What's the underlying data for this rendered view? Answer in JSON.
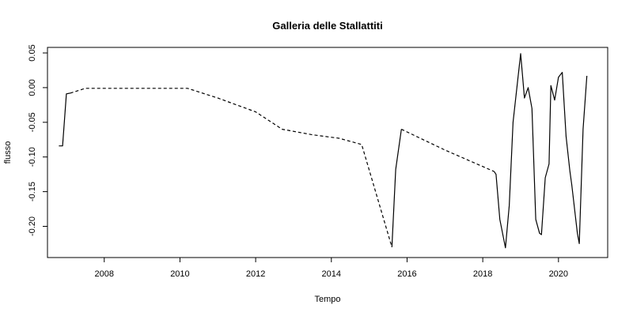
{
  "chart_data": {
    "type": "line",
    "title": "Galleria delle Stallattiti",
    "xlabel": "Tempo",
    "ylabel": "flusso",
    "xlim": [
      2006.5,
      2021.3
    ],
    "ylim": [
      -0.245,
      0.058
    ],
    "x_ticks": [
      2008,
      2010,
      2012,
      2014,
      2016,
      2018,
      2020
    ],
    "y_ticks": [
      0.05,
      0.0,
      -0.05,
      -0.1,
      -0.15,
      -0.2
    ],
    "y_tick_labels": [
      "0.05",
      "0.00",
      "-0.05",
      "-0.10",
      "-0.15",
      "-0.20"
    ],
    "grid": false,
    "segments": [
      {
        "style": "solid",
        "points": [
          [
            2006.8,
            -0.084
          ],
          [
            2006.9,
            -0.084
          ],
          [
            2007.0,
            -0.009
          ],
          [
            2007.1,
            -0.008
          ]
        ]
      },
      {
        "style": "dashed",
        "points": [
          [
            2007.1,
            -0.008
          ],
          [
            2007.5,
            -0.001
          ],
          [
            2008.0,
            -0.001
          ],
          [
            2010.2,
            -0.001
          ],
          [
            2011.0,
            -0.015
          ],
          [
            2012.0,
            -0.035
          ],
          [
            2012.7,
            -0.06
          ],
          [
            2013.5,
            -0.068
          ],
          [
            2014.2,
            -0.073
          ],
          [
            2014.8,
            -0.082
          ],
          [
            2015.6,
            -0.23
          ]
        ]
      },
      {
        "style": "solid",
        "points": [
          [
            2015.6,
            -0.23
          ],
          [
            2015.7,
            -0.118
          ],
          [
            2015.85,
            -0.06
          ]
        ]
      },
      {
        "style": "dashed",
        "points": [
          [
            2015.85,
            -0.06
          ],
          [
            2017.0,
            -0.09
          ],
          [
            2018.3,
            -0.121
          ]
        ]
      },
      {
        "style": "solid",
        "points": [
          [
            2018.3,
            -0.121
          ],
          [
            2018.35,
            -0.125
          ],
          [
            2018.45,
            -0.19
          ],
          [
            2018.6,
            -0.231
          ],
          [
            2018.7,
            -0.17
          ],
          [
            2018.8,
            -0.05
          ],
          [
            2019.0,
            0.049
          ],
          [
            2019.1,
            -0.015
          ],
          [
            2019.2,
            0.0
          ],
          [
            2019.3,
            -0.03
          ],
          [
            2019.4,
            -0.19
          ],
          [
            2019.5,
            -0.21
          ],
          [
            2019.55,
            -0.212
          ],
          [
            2019.65,
            -0.13
          ],
          [
            2019.75,
            -0.11
          ],
          [
            2019.8,
            0.003
          ],
          [
            2019.9,
            -0.018
          ],
          [
            2020.0,
            0.015
          ],
          [
            2020.1,
            0.022
          ],
          [
            2020.2,
            -0.07
          ],
          [
            2020.3,
            -0.12
          ],
          [
            2020.35,
            -0.14
          ],
          [
            2020.5,
            -0.21
          ],
          [
            2020.55,
            -0.225
          ],
          [
            2020.65,
            -0.06
          ],
          [
            2020.75,
            0.017
          ]
        ]
      }
    ]
  }
}
